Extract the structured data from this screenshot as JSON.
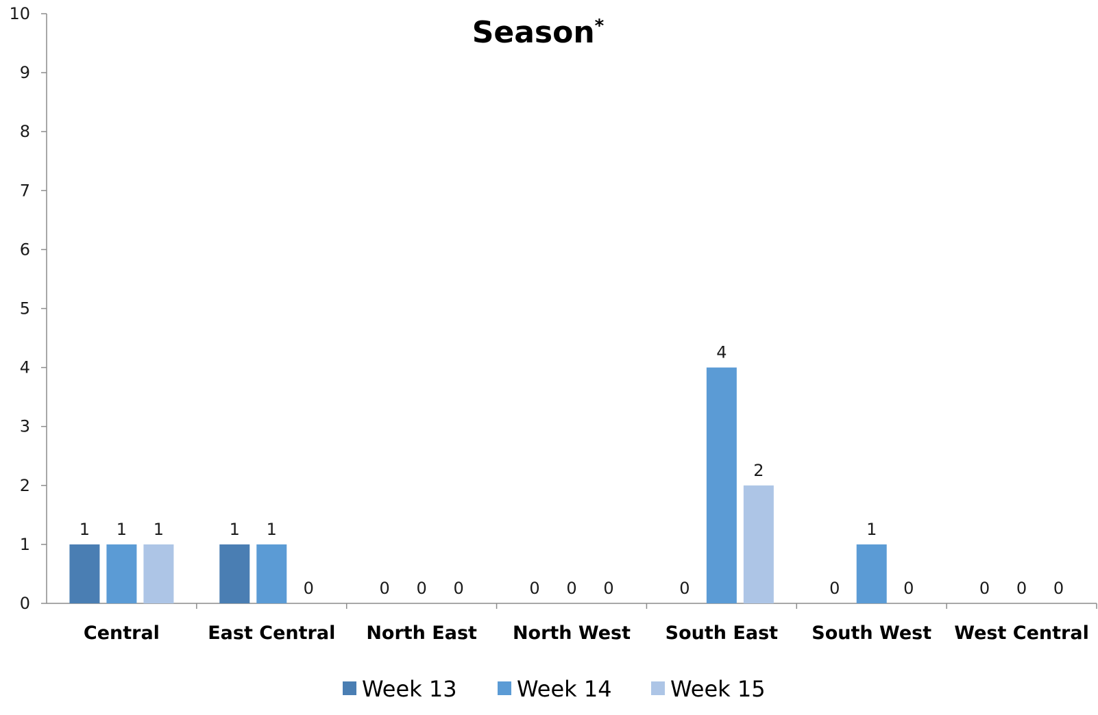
{
  "chart_data": {
    "type": "bar",
    "title": "Season",
    "title_marker": "*",
    "categories": [
      "Central",
      "East Central",
      "North East",
      "North West",
      "South East",
      "South West",
      "West Central"
    ],
    "series": [
      {
        "name": "Week 13",
        "color": "#4a7eb3",
        "values": [
          1,
          1,
          0,
          0,
          0,
          0,
          0
        ]
      },
      {
        "name": "Week 14",
        "color": "#5b9bd5",
        "values": [
          1,
          1,
          0,
          0,
          4,
          1,
          0
        ]
      },
      {
        "name": "Week 15",
        "color": "#adc5e6",
        "values": [
          1,
          0,
          0,
          0,
          2,
          0,
          0
        ]
      }
    ],
    "ylim": [
      0,
      10
    ],
    "yticks": [
      0,
      1,
      2,
      3,
      4,
      5,
      6,
      7,
      8,
      9,
      10
    ],
    "legend_position": "bottom",
    "grid": false
  }
}
